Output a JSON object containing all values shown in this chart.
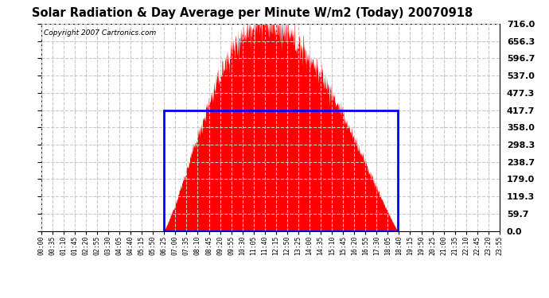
{
  "title": "Solar Radiation & Day Average per Minute W/m2 (Today) 20070918",
  "copyright": "Copyright 2007 Cartronics.com",
  "bg_color": "#ffffff",
  "bar_color": "#ff0000",
  "grid_color": "#c8c8c8",
  "box_color": "#0000ff",
  "yticks": [
    0.0,
    59.7,
    119.3,
    179.0,
    238.7,
    298.3,
    358.0,
    417.7,
    477.3,
    537.0,
    596.7,
    656.3,
    716.0
  ],
  "ymax": 716.0,
  "ymin": 0.0,
  "avg_line_value": 417.7,
  "sunrise_minute": 385,
  "sunset_minute": 1120,
  "total_minutes": 1440,
  "peak_minute": 690,
  "peak_value": 716.0,
  "xtick_labels": [
    "00:00",
    "00:35",
    "01:10",
    "01:45",
    "02:20",
    "02:55",
    "03:30",
    "04:05",
    "04:40",
    "05:15",
    "05:50",
    "06:25",
    "07:00",
    "07:35",
    "08:10",
    "08:45",
    "09:20",
    "09:55",
    "10:30",
    "11:05",
    "11:40",
    "12:15",
    "12:50",
    "13:25",
    "14:00",
    "14:35",
    "15:10",
    "15:45",
    "16:20",
    "16:55",
    "17:30",
    "18:05",
    "18:40",
    "19:15",
    "19:50",
    "20:25",
    "21:00",
    "21:35",
    "22:10",
    "22:45",
    "23:20",
    "23:55"
  ]
}
